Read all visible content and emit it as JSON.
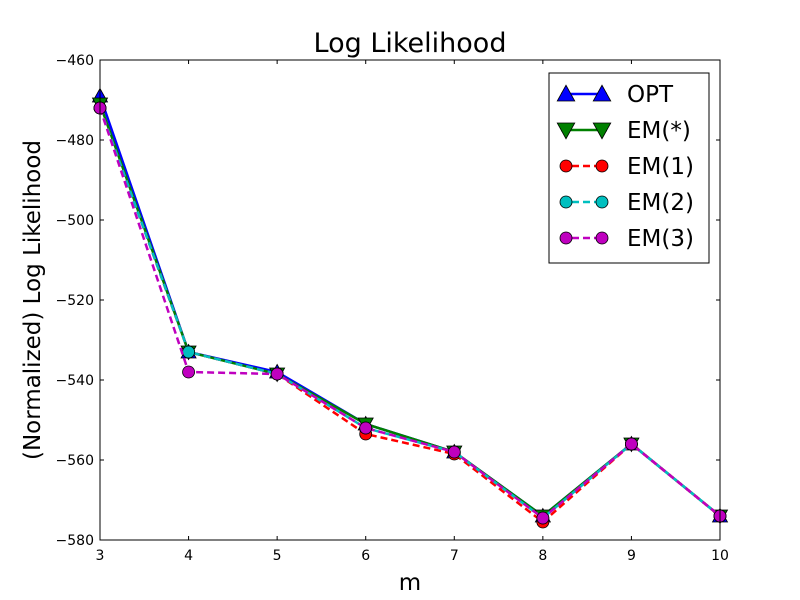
{
  "chart_data": {
    "type": "line",
    "title": "Log Likelihood",
    "xlabel": "m",
    "ylabel": "(Normalized) Log Likelihood",
    "xlim": [
      3,
      10
    ],
    "ylim": [
      -580,
      -460
    ],
    "xticks": [
      3,
      4,
      5,
      6,
      7,
      8,
      9,
      10
    ],
    "yticks": [
      -460,
      -480,
      -500,
      -520,
      -540,
      -560,
      -580
    ],
    "tick_labels_x": [
      "3",
      "4",
      "5",
      "6",
      "7",
      "8",
      "9",
      "10"
    ],
    "tick_labels_y": [
      "−460",
      "−480",
      "−500",
      "−520",
      "−540",
      "−560",
      "−580"
    ],
    "grid": false,
    "legend_position": "top-right",
    "x": [
      3,
      4,
      5,
      6,
      7,
      8,
      9,
      10
    ],
    "series": [
      {
        "name": "OPT",
        "values": [
          -469,
          -533,
          -538,
          -551,
          -558,
          -574,
          -556,
          -574
        ],
        "color": "#0000ff",
        "linestyle": "solid",
        "marker": "triangle-up"
      },
      {
        "name": "EM(*)",
        "values": [
          -471,
          -533,
          -538.5,
          -551,
          -558,
          -574,
          -556,
          -574
        ],
        "color": "#008000",
        "linestyle": "solid",
        "marker": "triangle-down"
      },
      {
        "name": "EM(1)",
        "values": [
          -472,
          -533,
          -538.5,
          -553.5,
          -558.5,
          -575.5,
          -556,
          -574
        ],
        "color": "#ff0000",
        "linestyle": "dashed",
        "marker": "circle"
      },
      {
        "name": "EM(2)",
        "values": [
          -472,
          -533,
          -538.5,
          -552,
          -558,
          -574.5,
          -556,
          -574
        ],
        "color": "#00bfbf",
        "linestyle": "dashed",
        "marker": "circle"
      },
      {
        "name": "EM(3)",
        "values": [
          -472,
          -538,
          -538.5,
          -552,
          -558,
          -574.5,
          -556,
          -574
        ],
        "color": "#bf00bf",
        "linestyle": "dashed",
        "marker": "circle"
      }
    ]
  }
}
